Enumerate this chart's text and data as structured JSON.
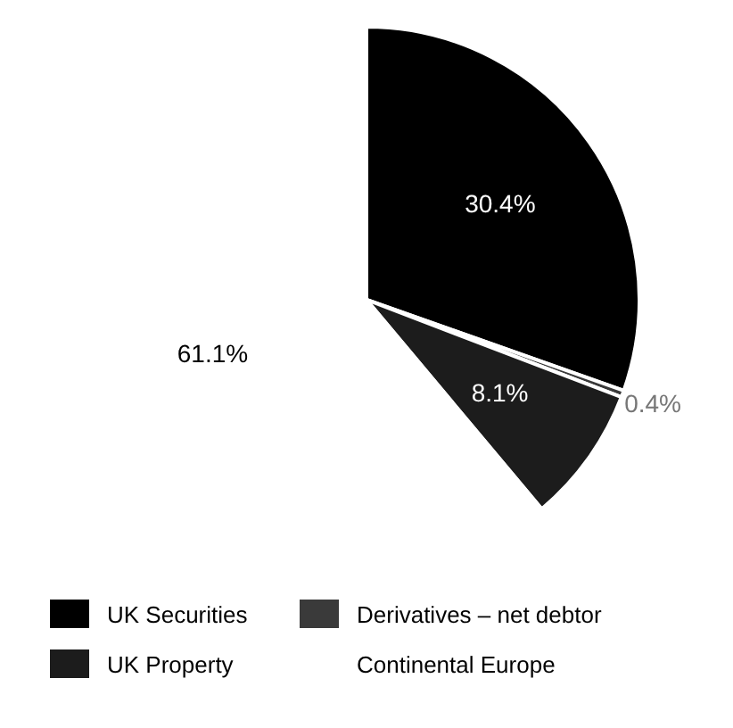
{
  "chart_data": {
    "type": "pie",
    "categories": [
      "UK Securities",
      "Derivatives – net debtor",
      "UK Property",
      "Continental Europe"
    ],
    "values": [
      30.4,
      0.4,
      8.1,
      61.1
    ],
    "colors": [
      "#000000",
      "#3a3a3a",
      "#1c1c1c",
      "#ffffff"
    ],
    "value_labels": [
      "30.4%",
      "0.4%",
      "8.1%",
      "61.1%"
    ],
    "legend": "bottom"
  }
}
